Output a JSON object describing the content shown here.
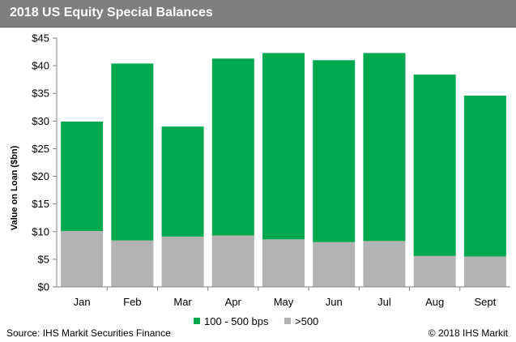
{
  "chart_data": {
    "type": "bar",
    "stacked": true,
    "title": "2018 US Equity Special Balances",
    "ylabel": "Value on Loan ($bn)",
    "xlabel": "",
    "ylim": [
      0,
      45
    ],
    "y_ticks": [
      "$0",
      "$5",
      "$10",
      "$15",
      "$20",
      "$25",
      "$30",
      "$35",
      "$40",
      "$45"
    ],
    "y_tick_values": [
      0,
      5,
      10,
      15,
      20,
      25,
      30,
      35,
      40,
      45
    ],
    "categories": [
      "Jan",
      "Feb",
      "Mar",
      "Apr",
      "May",
      "Jun",
      "Jul",
      "Aug",
      "Sept"
    ],
    "series": [
      {
        "name": ">500",
        "color": "#b3b3b3",
        "values": [
          10.1,
          8.4,
          9.1,
          9.3,
          8.6,
          8.1,
          8.3,
          5.6,
          5.5
        ]
      },
      {
        "name": "100 - 500 bps",
        "color": "#00a84f",
        "values": [
          19.8,
          32.0,
          19.9,
          32.0,
          33.7,
          32.9,
          34.0,
          32.8,
          29.1
        ]
      }
    ],
    "legend": {
      "placement": "bottom",
      "order": [
        "100 - 500 bps",
        ">500"
      ]
    },
    "grid": false
  },
  "footer": {
    "source": "Source: IHS Markit Securities Finance",
    "copyright": "© 2018 IHS Markit"
  }
}
